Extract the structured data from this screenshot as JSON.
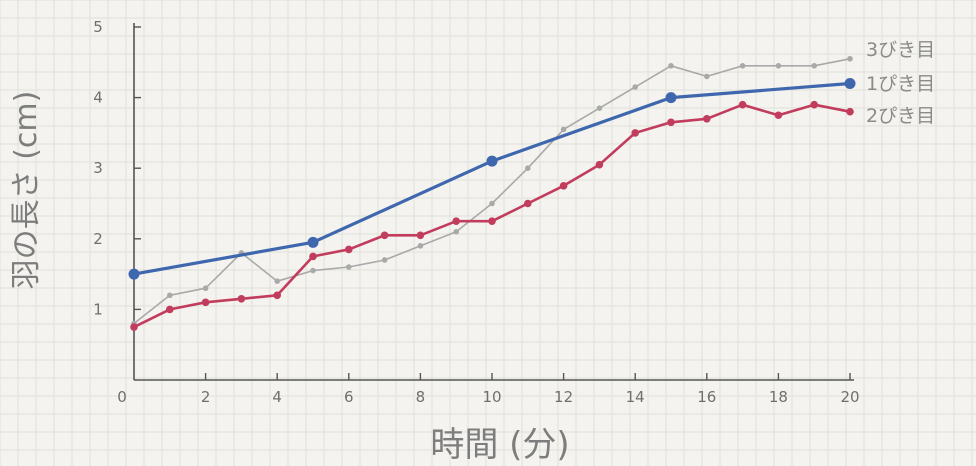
{
  "chart_data": {
    "type": "line",
    "title": "",
    "xlabel": "時間 (分)",
    "ylabel": "羽の長さ (cm)",
    "xlim": [
      0,
      20
    ],
    "ylim": [
      0,
      5
    ],
    "grid": true,
    "legend_position": "right",
    "x_ticks": [
      "0",
      "2",
      "4",
      "6",
      "8",
      "10",
      "12",
      "14",
      "16",
      "18",
      "20"
    ],
    "y_ticks": [
      "1",
      "2",
      "3",
      "4",
      "5"
    ],
    "series": [
      {
        "name": "3びき目",
        "color": "#a9a9a9",
        "x": [
          0,
          1,
          2,
          3,
          4,
          5,
          6,
          7,
          8,
          9,
          10,
          11,
          12,
          13,
          14,
          15,
          16,
          17,
          18,
          19,
          20
        ],
        "y": [
          0.8,
          1.2,
          1.3,
          1.8,
          1.4,
          1.55,
          1.6,
          1.7,
          1.9,
          2.1,
          2.5,
          3.0,
          3.55,
          3.85,
          4.15,
          4.45,
          4.3,
          4.45,
          4.45,
          4.45,
          4.55
        ]
      },
      {
        "name": "1ぴき目",
        "color": "#3f67ae",
        "x": [
          0,
          5,
          10,
          15,
          20
        ],
        "y": [
          1.5,
          1.95,
          3.1,
          4.0,
          4.2
        ]
      },
      {
        "name": "2ぴき目",
        "color": "#c23c5d",
        "x": [
          0,
          1,
          2,
          3,
          4,
          5,
          6,
          7,
          8,
          9,
          10,
          11,
          12,
          13,
          14,
          15,
          16,
          17,
          18,
          19,
          20
        ],
        "y": [
          0.75,
          1.0,
          1.1,
          1.15,
          1.2,
          1.75,
          1.85,
          2.05,
          2.05,
          2.25,
          2.25,
          2.5,
          2.75,
          3.05,
          3.5,
          3.65,
          3.7,
          3.9,
          3.75,
          3.9,
          3.8
        ]
      }
    ]
  }
}
